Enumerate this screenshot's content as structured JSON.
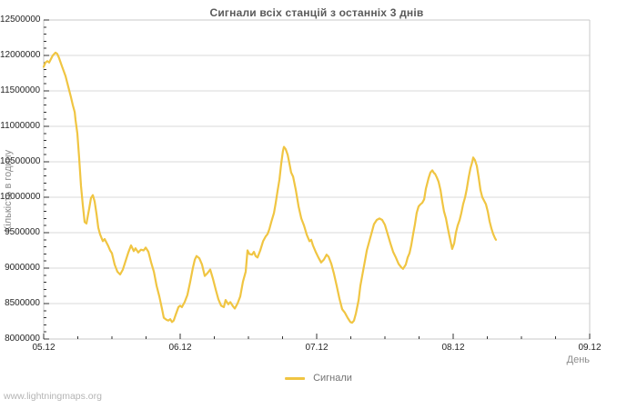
{
  "page": {
    "watermark": "www.lightningmaps.org"
  },
  "chart_data": {
    "type": "line",
    "title": "Сигнали всіх станцій з останніх 3 днів",
    "xlabel": "День",
    "ylabel": "Кількість в годину",
    "x_unit": "days since 05.12 00:00",
    "x_tick_labels": [
      "05.12",
      "06.12",
      "07.12",
      "08.12",
      "09.12"
    ],
    "x_tick_positions": [
      0,
      1,
      2,
      3,
      4
    ],
    "xlim": [
      0,
      4
    ],
    "ylim": [
      8000000,
      12500000
    ],
    "y_tick_step": 500000,
    "y_minor_step": 100000,
    "x_minor_step": 0.25,
    "grid": "horizontal-only",
    "colors": {
      "line": "#f0c542",
      "grid": "#d9d9d9",
      "frame": "#c8c8c8",
      "ticks": "#333333",
      "tick_text": "#262626",
      "title_text": "#595959",
      "axis_title_text": "#8c8c8c",
      "watermark_text": "#b4b4b4"
    },
    "legend": {
      "position": "bottom-center",
      "entries": [
        {
          "label": "Сигнали",
          "color": "#f0c542"
        }
      ]
    },
    "series": [
      {
        "name": "Сигнали",
        "color": "#f0c542",
        "points": [
          [
            0,
            11840000
          ],
          [
            0.013,
            11900000
          ],
          [
            0.027,
            11920000
          ],
          [
            0.04,
            11900000
          ],
          [
            0.053,
            11950000
          ],
          [
            0.067,
            12000000
          ],
          [
            0.087,
            12040000
          ],
          [
            0.1,
            12020000
          ],
          [
            0.113,
            11960000
          ],
          [
            0.133,
            11850000
          ],
          [
            0.16,
            11710000
          ],
          [
            0.18,
            11560000
          ],
          [
            0.2,
            11410000
          ],
          [
            0.213,
            11300000
          ],
          [
            0.227,
            11200000
          ],
          [
            0.233,
            11090000
          ],
          [
            0.247,
            10900000
          ],
          [
            0.26,
            10550000
          ],
          [
            0.273,
            10160000
          ],
          [
            0.287,
            9890000
          ],
          [
            0.3,
            9650000
          ],
          [
            0.313,
            9630000
          ],
          [
            0.333,
            9840000
          ],
          [
            0.347,
            9990000
          ],
          [
            0.36,
            10030000
          ],
          [
            0.373,
            9940000
          ],
          [
            0.387,
            9760000
          ],
          [
            0.4,
            9570000
          ],
          [
            0.413,
            9480000
          ],
          [
            0.433,
            9380000
          ],
          [
            0.447,
            9410000
          ],
          [
            0.46,
            9360000
          ],
          [
            0.473,
            9310000
          ],
          [
            0.487,
            9250000
          ],
          [
            0.5,
            9210000
          ],
          [
            0.52,
            9050000
          ],
          [
            0.54,
            8950000
          ],
          [
            0.56,
            8910000
          ],
          [
            0.58,
            8980000
          ],
          [
            0.6,
            9100000
          ],
          [
            0.62,
            9220000
          ],
          [
            0.64,
            9320000
          ],
          [
            0.66,
            9240000
          ],
          [
            0.673,
            9280000
          ],
          [
            0.693,
            9220000
          ],
          [
            0.713,
            9260000
          ],
          [
            0.733,
            9250000
          ],
          [
            0.747,
            9290000
          ],
          [
            0.767,
            9230000
          ],
          [
            0.787,
            9080000
          ],
          [
            0.807,
            8950000
          ],
          [
            0.827,
            8750000
          ],
          [
            0.847,
            8600000
          ],
          [
            0.867,
            8420000
          ],
          [
            0.88,
            8300000
          ],
          [
            0.9,
            8270000
          ],
          [
            0.913,
            8260000
          ],
          [
            0.927,
            8280000
          ],
          [
            0.94,
            8240000
          ],
          [
            0.953,
            8260000
          ],
          [
            0.967,
            8340000
          ],
          [
            0.987,
            8450000
          ],
          [
            1,
            8470000
          ],
          [
            1.013,
            8450000
          ],
          [
            1.033,
            8520000
          ],
          [
            1.053,
            8620000
          ],
          [
            1.073,
            8800000
          ],
          [
            1.093,
            9000000
          ],
          [
            1.107,
            9120000
          ],
          [
            1.12,
            9170000
          ],
          [
            1.14,
            9140000
          ],
          [
            1.16,
            9050000
          ],
          [
            1.18,
            8890000
          ],
          [
            1.2,
            8930000
          ],
          [
            1.22,
            8980000
          ],
          [
            1.24,
            8850000
          ],
          [
            1.26,
            8700000
          ],
          [
            1.28,
            8560000
          ],
          [
            1.3,
            8470000
          ],
          [
            1.32,
            8450000
          ],
          [
            1.333,
            8550000
          ],
          [
            1.353,
            8490000
          ],
          [
            1.367,
            8520000
          ],
          [
            1.387,
            8460000
          ],
          [
            1.4,
            8430000
          ],
          [
            1.42,
            8500000
          ],
          [
            1.44,
            8600000
          ],
          [
            1.46,
            8810000
          ],
          [
            1.48,
            8950000
          ],
          [
            1.493,
            9250000
          ],
          [
            1.507,
            9200000
          ],
          [
            1.527,
            9190000
          ],
          [
            1.54,
            9230000
          ],
          [
            1.553,
            9170000
          ],
          [
            1.567,
            9150000
          ],
          [
            1.587,
            9250000
          ],
          [
            1.607,
            9380000
          ],
          [
            1.627,
            9450000
          ],
          [
            1.64,
            9480000
          ],
          [
            1.653,
            9550000
          ],
          [
            1.667,
            9650000
          ],
          [
            1.687,
            9780000
          ],
          [
            1.7,
            9920000
          ],
          [
            1.713,
            10080000
          ],
          [
            1.727,
            10250000
          ],
          [
            1.74,
            10470000
          ],
          [
            1.753,
            10650000
          ],
          [
            1.76,
            10710000
          ],
          [
            1.773,
            10680000
          ],
          [
            1.787,
            10600000
          ],
          [
            1.8,
            10480000
          ],
          [
            1.813,
            10350000
          ],
          [
            1.827,
            10290000
          ],
          [
            1.847,
            10100000
          ],
          [
            1.867,
            9870000
          ],
          [
            1.887,
            9700000
          ],
          [
            1.907,
            9600000
          ],
          [
            1.927,
            9470000
          ],
          [
            1.947,
            9380000
          ],
          [
            1.96,
            9400000
          ],
          [
            1.973,
            9320000
          ],
          [
            1.993,
            9230000
          ],
          [
            2.013,
            9150000
          ],
          [
            2.033,
            9080000
          ],
          [
            2.053,
            9120000
          ],
          [
            2.073,
            9190000
          ],
          [
            2.087,
            9160000
          ],
          [
            2.107,
            9060000
          ],
          [
            2.127,
            8920000
          ],
          [
            2.147,
            8750000
          ],
          [
            2.167,
            8570000
          ],
          [
            2.187,
            8420000
          ],
          [
            2.207,
            8370000
          ],
          [
            2.227,
            8300000
          ],
          [
            2.247,
            8240000
          ],
          [
            2.26,
            8230000
          ],
          [
            2.273,
            8260000
          ],
          [
            2.287,
            8360000
          ],
          [
            2.307,
            8550000
          ],
          [
            2.32,
            8750000
          ],
          [
            2.333,
            8890000
          ],
          [
            2.353,
            9100000
          ],
          [
            2.367,
            9250000
          ],
          [
            2.38,
            9340000
          ],
          [
            2.4,
            9480000
          ],
          [
            2.42,
            9620000
          ],
          [
            2.44,
            9680000
          ],
          [
            2.46,
            9700000
          ],
          [
            2.48,
            9680000
          ],
          [
            2.5,
            9610000
          ],
          [
            2.52,
            9480000
          ],
          [
            2.54,
            9350000
          ],
          [
            2.56,
            9230000
          ],
          [
            2.58,
            9150000
          ],
          [
            2.6,
            9060000
          ],
          [
            2.62,
            9010000
          ],
          [
            2.633,
            8990000
          ],
          [
            2.653,
            9050000
          ],
          [
            2.667,
            9150000
          ],
          [
            2.68,
            9210000
          ],
          [
            2.693,
            9320000
          ],
          [
            2.707,
            9480000
          ],
          [
            2.72,
            9620000
          ],
          [
            2.733,
            9780000
          ],
          [
            2.747,
            9870000
          ],
          [
            2.76,
            9900000
          ],
          [
            2.773,
            9920000
          ],
          [
            2.787,
            9970000
          ],
          [
            2.8,
            10120000
          ],
          [
            2.82,
            10270000
          ],
          [
            2.833,
            10350000
          ],
          [
            2.847,
            10380000
          ],
          [
            2.86,
            10340000
          ],
          [
            2.867,
            10330000
          ],
          [
            2.88,
            10280000
          ],
          [
            2.893,
            10220000
          ],
          [
            2.907,
            10100000
          ],
          [
            2.92,
            9940000
          ],
          [
            2.933,
            9800000
          ],
          [
            2.947,
            9700000
          ],
          [
            2.96,
            9570000
          ],
          [
            2.973,
            9450000
          ],
          [
            2.987,
            9320000
          ],
          [
            2.993,
            9270000
          ],
          [
            3.007,
            9350000
          ],
          [
            3.02,
            9500000
          ],
          [
            3.033,
            9600000
          ],
          [
            3.047,
            9680000
          ],
          [
            3.06,
            9780000
          ],
          [
            3.073,
            9900000
          ],
          [
            3.087,
            10000000
          ],
          [
            3.1,
            10120000
          ],
          [
            3.113,
            10280000
          ],
          [
            3.127,
            10410000
          ],
          [
            3.14,
            10500000
          ],
          [
            3.147,
            10560000
          ],
          [
            3.16,
            10520000
          ],
          [
            3.173,
            10440000
          ],
          [
            3.187,
            10280000
          ],
          [
            3.2,
            10100000
          ],
          [
            3.213,
            10000000
          ],
          [
            3.227,
            9950000
          ],
          [
            3.24,
            9900000
          ],
          [
            3.253,
            9800000
          ],
          [
            3.267,
            9660000
          ],
          [
            3.28,
            9560000
          ],
          [
            3.293,
            9480000
          ],
          [
            3.307,
            9420000
          ],
          [
            3.313,
            9400000
          ]
        ]
      }
    ]
  }
}
